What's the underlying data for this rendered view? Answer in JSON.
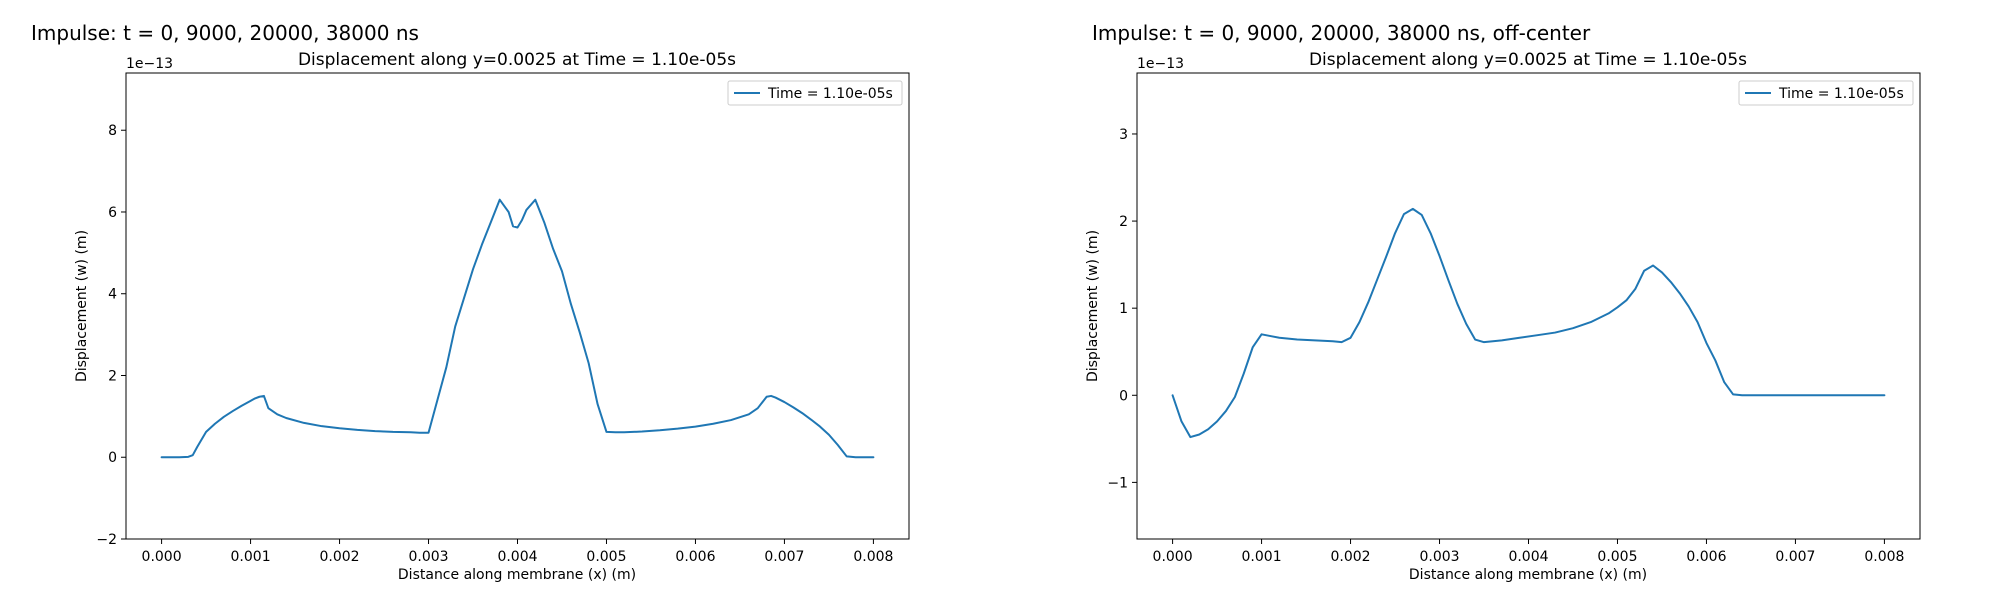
{
  "panels": [
    {
      "suptitle": "Impulse: t = 0, 9000, 20000, 38000 ns",
      "chart_data": {
        "type": "line",
        "title": "Displacement along y=0.0025 at Time = 1.10e-05s",
        "xlabel": "Distance along membrane (x) (m)",
        "ylabel": "Displacement (w) (m)",
        "xlim": [
          -0.0004,
          0.0084
        ],
        "ylim": [
          -2e-13,
          9.4e-13
        ],
        "x_ticks": [
          0.0,
          0.001,
          0.002,
          0.003,
          0.004,
          0.005,
          0.006,
          0.007,
          0.008
        ],
        "x_tick_labels": [
          "0.000",
          "0.001",
          "0.002",
          "0.003",
          "0.004",
          "0.005",
          "0.006",
          "0.007",
          "0.008"
        ],
        "y_ticks": [
          -2e-13,
          0.0,
          2e-13,
          4e-13,
          6e-13,
          8e-13
        ],
        "y_tick_labels": [
          "−2",
          "0",
          "2",
          "4",
          "6",
          "8"
        ],
        "y_offset_label": "1e−13",
        "grid": false,
        "legend": "top-right",
        "series": [
          {
            "name": "Time = 1.10e-05s",
            "color": "#1f77b4",
            "x": [
              0.0,
              0.0001,
              0.0002,
              0.0003,
              0.00035,
              0.0004,
              0.0005,
              0.0006,
              0.0007,
              0.0008,
              0.0009,
              0.001,
              0.00105,
              0.0011,
              0.00115,
              0.0012,
              0.0013,
              0.0014,
              0.0016,
              0.0018,
              0.002,
              0.0022,
              0.0024,
              0.0026,
              0.0028,
              0.0029,
              0.003,
              0.0031,
              0.0032,
              0.0033,
              0.0034,
              0.0035,
              0.0036,
              0.0037,
              0.0038,
              0.0039,
              0.00395,
              0.004,
              0.00405,
              0.0041,
              0.0042,
              0.0043,
              0.0044,
              0.0045,
              0.0046,
              0.0047,
              0.0048,
              0.0049,
              0.005,
              0.0051,
              0.0052,
              0.0054,
              0.0056,
              0.0058,
              0.006,
              0.0062,
              0.0064,
              0.0066,
              0.0067,
              0.0068,
              0.00685,
              0.0069,
              0.007,
              0.0071,
              0.0072,
              0.0073,
              0.0074,
              0.0075,
              0.0076,
              0.0077,
              0.0078,
              0.0079,
              0.008
            ],
            "y": [
              0.0,
              0.0,
              0.0,
              1e-15,
              5e-15,
              2.5e-14,
              6.2e-14,
              8.2e-14,
              9.9e-14,
              1.13e-13,
              1.26e-13,
              1.38e-13,
              1.44e-13,
              1.48e-13,
              1.5e-13,
              1.2e-13,
              1.05e-13,
              9.6e-14,
              8.4e-14,
              7.6e-14,
              7.1e-14,
              6.7e-14,
              6.4e-14,
              6.2e-14,
              6.1e-14,
              6e-14,
              6e-14,
              1.4e-13,
              2.2e-13,
              3.2e-13,
              3.9e-13,
              4.6e-13,
              5.2e-13,
              5.75e-13,
              6.3e-13,
              6e-13,
              5.65e-13,
              5.62e-13,
              5.8e-13,
              6.05e-13,
              6.3e-13,
              5.75e-13,
              5.1e-13,
              4.55e-13,
              3.75e-13,
              3.05e-13,
              2.3e-13,
              1.3e-13,
              6.2e-14,
              6.1e-14,
              6.1e-14,
              6.3e-14,
              6.6e-14,
              7e-14,
              7.5e-14,
              8.2e-14,
              9.1e-14,
              1.05e-13,
              1.2e-13,
              1.48e-13,
              1.5e-13,
              1.46e-13,
              1.35e-13,
              1.22e-13,
              1.08e-13,
              9.2e-14,
              7.5e-14,
              5.5e-14,
              3e-14,
              2e-15,
              0.0,
              0.0,
              0.0
            ]
          }
        ]
      }
    },
    {
      "suptitle": "Impulse: t = 0, 9000, 20000, 38000 ns, off-center",
      "chart_data": {
        "type": "line",
        "title": "Displacement along y=0.0025 at Time = 1.10e-05s",
        "xlabel": "Distance along membrane (x) (m)",
        "ylabel": "Displacement (w) (m)",
        "xlim": [
          -0.0004,
          0.0084
        ],
        "ylim": [
          -1.65e-13,
          3.7e-13
        ],
        "x_ticks": [
          0.0,
          0.001,
          0.002,
          0.003,
          0.004,
          0.005,
          0.006,
          0.007,
          0.008
        ],
        "x_tick_labels": [
          "0.000",
          "0.001",
          "0.002",
          "0.003",
          "0.004",
          "0.005",
          "0.006",
          "0.007",
          "0.008"
        ],
        "y_ticks": [
          -1e-13,
          0.0,
          1e-13,
          2e-13,
          3e-13
        ],
        "y_tick_labels": [
          "−1",
          "0",
          "1",
          "2",
          "3"
        ],
        "y_offset_label": "1e−13",
        "grid": false,
        "legend": "top-right",
        "series": [
          {
            "name": "Time = 1.10e-05s",
            "color": "#1f77b4",
            "x": [
              0.0,
              0.0001,
              0.0002,
              0.0003,
              0.0004,
              0.0005,
              0.0006,
              0.0007,
              0.0008,
              0.0009,
              0.001,
              0.0011,
              0.0012,
              0.0014,
              0.0016,
              0.0018,
              0.0019,
              0.002,
              0.0021,
              0.0022,
              0.0023,
              0.0024,
              0.0025,
              0.0026,
              0.0027,
              0.0028,
              0.0029,
              0.003,
              0.0031,
              0.0032,
              0.0033,
              0.0034,
              0.0035,
              0.0037,
              0.0039,
              0.0041,
              0.0043,
              0.0045,
              0.0047,
              0.0049,
              0.005,
              0.0051,
              0.0052,
              0.0053,
              0.0054,
              0.0055,
              0.0056,
              0.0057,
              0.0058,
              0.0059,
              0.006,
              0.0061,
              0.0062,
              0.0063,
              0.0064,
              0.0066,
              0.0068,
              0.007,
              0.0072,
              0.0074,
              0.0076,
              0.0078,
              0.008
            ],
            "y": [
              0.0,
              -3e-14,
              -4.8e-14,
              -4.5e-14,
              -3.9e-14,
              -3e-14,
              -1.8e-14,
              -2e-15,
              2.5e-14,
              5.5e-14,
              7e-14,
              6.8e-14,
              6.6e-14,
              6.4e-14,
              6.3e-14,
              6.2e-14,
              6.1e-14,
              6.6e-14,
              8.4e-14,
              1.07e-13,
              1.33e-13,
              1.59e-13,
              1.86e-13,
              2.08e-13,
              2.14e-13,
              2.07e-13,
              1.86e-13,
              1.6e-13,
              1.32e-13,
              1.05e-13,
              8.2e-14,
              6.4e-14,
              6.1e-14,
              6.3e-14,
              6.6e-14,
              6.9e-14,
              7.2e-14,
              7.7e-14,
              8.4e-14,
              9.4e-14,
              1.01e-13,
              1.09e-13,
              1.22e-13,
              1.43e-13,
              1.49e-13,
              1.41e-13,
              1.3e-13,
              1.17e-13,
              1.02e-13,
              8.4e-14,
              6e-14,
              4e-14,
              1.5e-14,
              1e-15,
              0.0,
              0.0,
              0.0,
              0.0,
              0.0,
              0.0,
              0.0,
              0.0,
              0.0
            ]
          }
        ]
      }
    }
  ]
}
